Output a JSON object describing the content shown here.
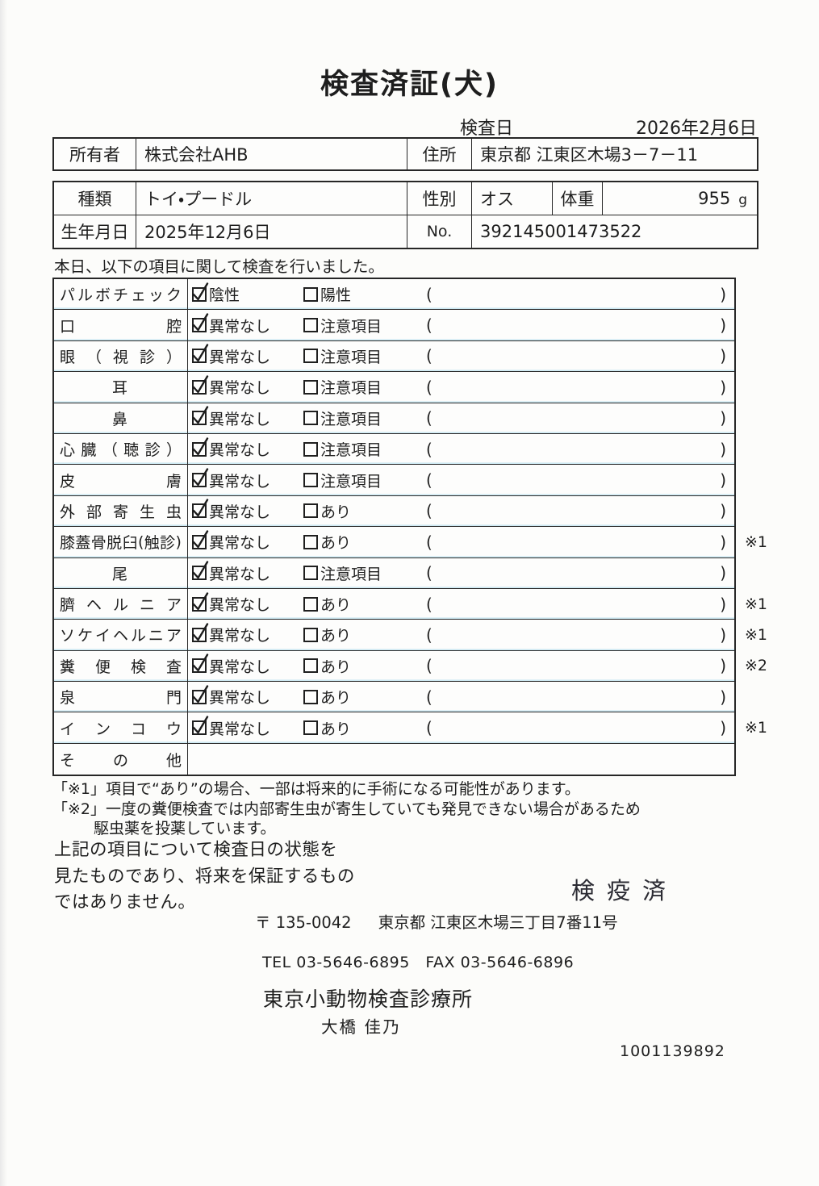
{
  "title": "検査済証(犬)",
  "inspection": {
    "label": "検査日",
    "date": "2026年2月6日"
  },
  "owner_table": {
    "owner_label": "所有者",
    "owner_value": "株式会社AHB",
    "address_label": "住所",
    "address_value": "東京都 江東区木場3－7－11"
  },
  "pet_table": {
    "breed_label": "種類",
    "breed_value": "トイ・プードル",
    "sex_label": "性別",
    "sex_value": "オス",
    "weight_label": "体重",
    "weight_value": "955",
    "weight_unit": "g",
    "birth_label": "生年月日",
    "birth_value": "2025年12月6日",
    "no_label": "No.",
    "no_value": "392145001473522"
  },
  "intro": "本日、以下の項目に関して検査を行いました。",
  "checklist": {
    "paren_open": "(",
    "paren_close": ")",
    "rows": [
      {
        "label": "パルボチェック",
        "opt1": "陰性",
        "opt2": "陽性",
        "checked1": true,
        "checked2": false,
        "note": ""
      },
      {
        "label": "口腔",
        "opt1": "異常なし",
        "opt2": "注意項目",
        "checked1": true,
        "checked2": false,
        "note": ""
      },
      {
        "label": "眼（視診）",
        "opt1": "異常なし",
        "opt2": "注意項目",
        "checked1": true,
        "checked2": false,
        "note": ""
      },
      {
        "label": "耳",
        "center": true,
        "opt1": "異常なし",
        "opt2": "注意項目",
        "checked1": true,
        "checked2": false,
        "note": ""
      },
      {
        "label": "鼻",
        "center": true,
        "opt1": "異常なし",
        "opt2": "注意項目",
        "checked1": true,
        "checked2": false,
        "note": ""
      },
      {
        "label": "心臓（聴診）",
        "opt1": "異常なし",
        "opt2": "注意項目",
        "checked1": true,
        "checked2": false,
        "note": ""
      },
      {
        "label": "皮膚",
        "opt1": "異常なし",
        "opt2": "注意項目",
        "checked1": true,
        "checked2": false,
        "note": ""
      },
      {
        "label": "外部寄生虫",
        "opt1": "異常なし",
        "opt2": "あり",
        "checked1": true,
        "checked2": false,
        "note": ""
      },
      {
        "label": "膝蓋骨脱臼(触診)",
        "opt1": "異常なし",
        "opt2": "あり",
        "checked1": true,
        "checked2": false,
        "note": "※1"
      },
      {
        "label": "尾",
        "center": true,
        "opt1": "異常なし",
        "opt2": "注意項目",
        "checked1": true,
        "checked2": false,
        "note": ""
      },
      {
        "label": "臍ヘルニア",
        "opt1": "異常なし",
        "opt2": "あり",
        "checked1": true,
        "checked2": false,
        "note": "※1"
      },
      {
        "label": "ソケイヘルニア",
        "opt1": "異常なし",
        "opt2": "あり",
        "checked1": true,
        "checked2": false,
        "note": "※1"
      },
      {
        "label": "糞便検査",
        "opt1": "異常なし",
        "opt2": "あり",
        "checked1": true,
        "checked2": false,
        "note": "※2"
      },
      {
        "label": "泉門",
        "opt1": "異常なし",
        "opt2": "あり",
        "checked1": true,
        "checked2": false,
        "note": ""
      },
      {
        "label": "インコウ",
        "opt1": "異常なし",
        "opt2": "あり",
        "checked1": true,
        "checked2": false,
        "note": "※1"
      },
      {
        "label": "その他",
        "empty": true,
        "note": ""
      }
    ]
  },
  "footnotes": {
    "note1": "「※1」項目で“あり”の場合、一部は将来的に手術になる可能性があります。",
    "note2_line1": "「※2」一度の糞便検査では内部寄生虫が寄生していても発見できない場合があるため",
    "note2_line2": "駆虫薬を投薬しています。"
  },
  "disclaimer": {
    "line1": "上記の項目について検査日の状態を",
    "line2": "見たものであり、将来を保証するもの",
    "line3": "ではありません。"
  },
  "quarantine_stamp": "検疫済",
  "clinic": {
    "postal": "〒 135-0042",
    "address": "東京都 江東区木場三丁目7番11号",
    "tel_fax": "TEL 03-5646-6895　FAX 03-5646-6896",
    "name": "東京小動物検査診療所",
    "person": "大橋 佳乃",
    "code": "1001139892"
  }
}
